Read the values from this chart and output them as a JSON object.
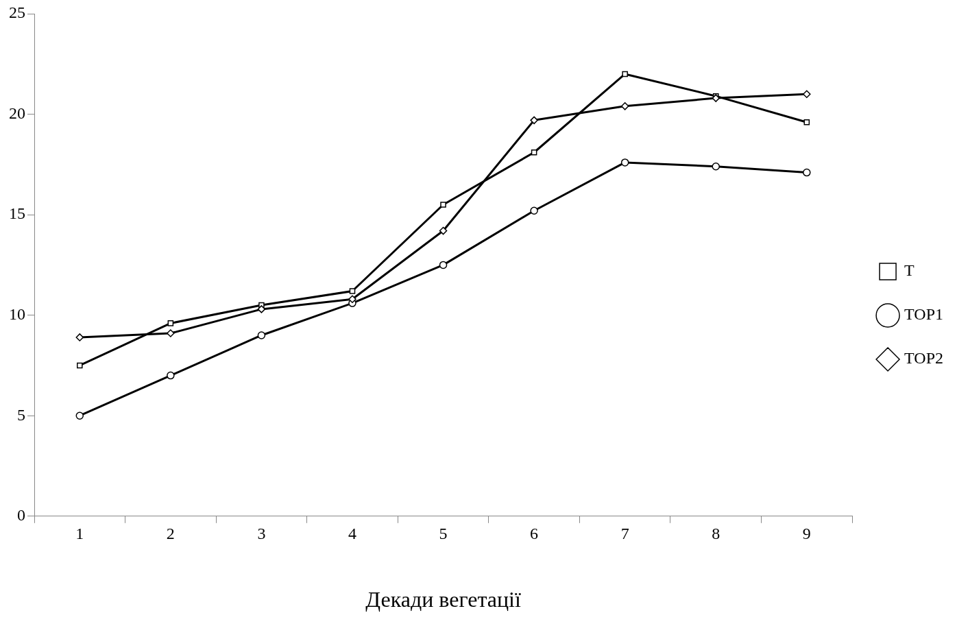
{
  "chart_data": {
    "type": "line",
    "xlabel": "Декади вегетації",
    "categories": [
      "1",
      "2",
      "3",
      "4",
      "5",
      "6",
      "7",
      "8",
      "9"
    ],
    "series": [
      {
        "name": "T",
        "color": "#000000",
        "marker": "square",
        "values": [
          7.5,
          9.6,
          10.5,
          11.2,
          15.5,
          18.1,
          22.0,
          20.9,
          19.6
        ]
      },
      {
        "name": "TOP1",
        "color": "#000000",
        "marker": "circle",
        "values": [
          5.0,
          7.0,
          9.0,
          10.6,
          12.5,
          15.2,
          17.6,
          17.4,
          17.1
        ]
      },
      {
        "name": "TOP2",
        "color": "#000000",
        "marker": "diamond",
        "values": [
          8.9,
          9.1,
          10.3,
          10.8,
          14.2,
          19.7,
          20.4,
          20.8,
          21.0
        ]
      }
    ],
    "ylim": [
      0,
      25
    ],
    "yticks": [
      0,
      5,
      10,
      15,
      20,
      25
    ],
    "grid": false,
    "legend": "right",
    "line_style": "solid"
  }
}
